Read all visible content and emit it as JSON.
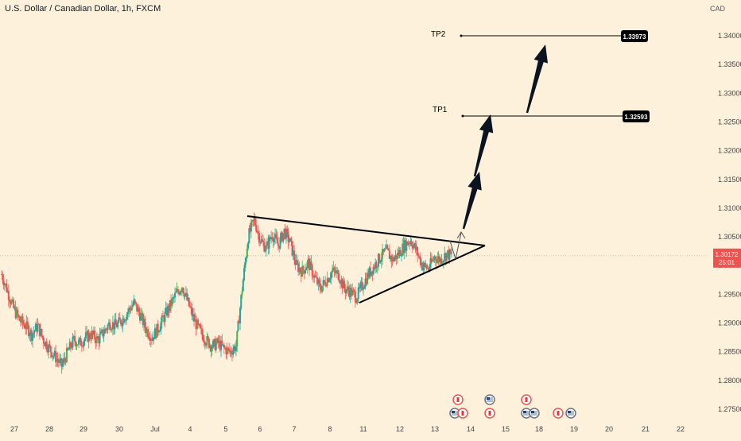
{
  "header": {
    "symbol_title": "U.S. Dollar / Canadian Dollar, 1h, FXCM",
    "currency": "CAD"
  },
  "colors": {
    "background": "#fdf1dc",
    "up": "#26a69a",
    "up_alt": "#4caf50",
    "down": "#ef5350",
    "line": "#000000",
    "price_tag": "#ef5350"
  },
  "chart_data": {
    "type": "candlestick",
    "title": "U.S. Dollar / Canadian Dollar, 1h, FXCM",
    "x_tick_labels": [
      "27",
      "28",
      "29",
      "30",
      "Jul",
      "4",
      "5",
      "6",
      "7",
      "8",
      "11",
      "12",
      "13",
      "14",
      "15",
      "18",
      "19",
      "20",
      "21",
      "22"
    ],
    "y_tick_labels": [
      "1.34000",
      "1.33500",
      "1.33000",
      "1.32500",
      "1.32000",
      "1.31500",
      "1.31000",
      "1.30500",
      "1.30000",
      "1.29500",
      "1.29000",
      "1.28500",
      "1.28000",
      "1.27500"
    ],
    "ylim": [
      1.27,
      1.345
    ],
    "current_price": {
      "price": "1.30172",
      "countdown": "25:01"
    },
    "targets": [
      {
        "label": "TP1",
        "value": "1.32593"
      },
      {
        "label": "TP2",
        "value": "1.33973"
      }
    ],
    "annotations": {
      "triangle_pattern": "symmetrical triangle",
      "arrows": "bullish breakout path toward TP1 then TP2"
    },
    "series_trend": [
      1.2985,
      1.2955,
      1.2925,
      1.2905,
      1.2895,
      1.288,
      1.2895,
      1.287,
      1.2855,
      1.284,
      1.2825,
      1.285,
      1.287,
      1.2865,
      1.2875,
      1.288,
      1.287,
      1.2885,
      1.29,
      1.2895,
      1.2905,
      1.292,
      1.2935,
      1.2915,
      1.289,
      1.2875,
      1.289,
      1.291,
      1.293,
      1.295,
      1.2965,
      1.2935,
      1.2905,
      1.2885,
      1.287,
      1.286,
      1.2865,
      1.2855,
      1.285,
      1.286,
      1.296,
      1.305,
      1.308,
      1.3045,
      1.303,
      1.3055,
      1.3035,
      1.306,
      1.304,
      1.3,
      1.299,
      1.3005,
      1.298,
      1.296,
      1.2975,
      1.299,
      1.2985,
      1.296,
      1.2955,
      1.2945,
      1.2965,
      1.2985,
      1.3,
      1.3015,
      1.3025,
      1.301,
      1.302,
      1.3035,
      1.3045,
      1.3025,
      1.3,
      1.2995,
      1.3015,
      1.301,
      1.302,
      1.3017
    ]
  },
  "events": {
    "flags": [
      "CA",
      "US",
      "CA",
      "US",
      "CA",
      "US"
    ]
  }
}
